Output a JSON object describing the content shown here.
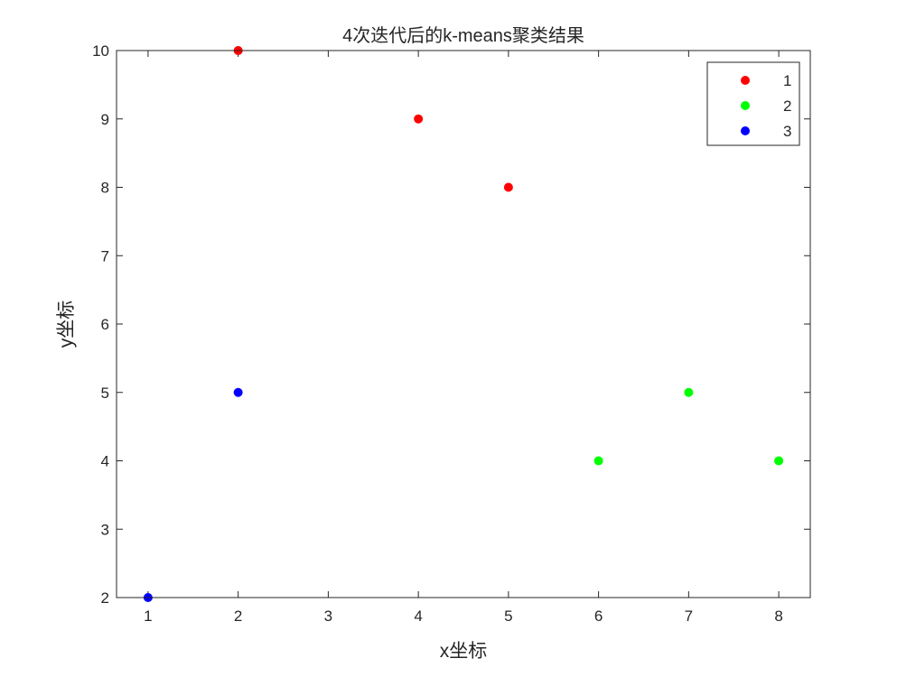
{
  "chart_data": {
    "type": "scatter",
    "title": "4次迭代后的k-means聚类结果",
    "xlabel": "x坐标",
    "ylabel": "y坐标",
    "xlim": [
      0.65,
      8.35
    ],
    "ylim": [
      2,
      10
    ],
    "xticks": [
      "1",
      "2",
      "3",
      "4",
      "5",
      "6",
      "7",
      "8"
    ],
    "yticks": [
      "2",
      "3",
      "4",
      "5",
      "6",
      "7",
      "8",
      "9",
      "10"
    ],
    "grid": false,
    "legend_position": "top-right",
    "series": [
      {
        "name": "1",
        "color": "#ff0000",
        "points": [
          [
            2,
            10
          ],
          [
            4,
            9
          ],
          [
            5,
            8
          ]
        ]
      },
      {
        "name": "2",
        "color": "#00ff00",
        "points": [
          [
            6,
            4
          ],
          [
            7,
            5
          ],
          [
            8,
            4
          ]
        ]
      },
      {
        "name": "3",
        "color": "#0000ff",
        "points": [
          [
            1,
            2
          ],
          [
            2,
            5
          ]
        ]
      }
    ]
  }
}
